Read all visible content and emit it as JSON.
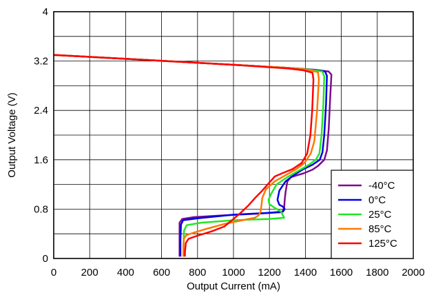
{
  "chart_data": {
    "type": "line",
    "title": "",
    "xlabel": "Output Current (mA)",
    "ylabel": "Output Voltage (V)",
    "xlim": [
      0,
      2000
    ],
    "ylim": [
      0,
      4
    ],
    "xticks": [
      "0",
      "200",
      "400",
      "600",
      "800",
      "1000",
      "1200",
      "1400",
      "1600",
      "1800",
      "2000"
    ],
    "yticks": [
      "0",
      "0.8",
      "1.6",
      "2.4",
      "3.2",
      "4"
    ],
    "grid": true,
    "legend_position": "bottom-right",
    "series": [
      {
        "name": "-40°C",
        "color": "#7B0C8C",
        "points": [
          [
            0,
            3.3
          ],
          [
            500,
            3.22
          ],
          [
            1000,
            3.14
          ],
          [
            1300,
            3.09
          ],
          [
            1450,
            3.06
          ],
          [
            1530,
            3.03
          ],
          [
            1545,
            2.98
          ],
          [
            1538,
            2.6
          ],
          [
            1530,
            2.1
          ],
          [
            1520,
            1.75
          ],
          [
            1505,
            1.6
          ],
          [
            1470,
            1.5
          ],
          [
            1440,
            1.44
          ],
          [
            1390,
            1.38
          ],
          [
            1320,
            1.32
          ],
          [
            1300,
            1.25
          ],
          [
            1290,
            1.08
          ],
          [
            1285,
            0.95
          ],
          [
            1282,
            0.82
          ],
          [
            1270,
            0.75
          ],
          [
            1150,
            0.73
          ],
          [
            950,
            0.7
          ],
          [
            780,
            0.67
          ],
          [
            715,
            0.64
          ],
          [
            700,
            0.58
          ],
          [
            700,
            0.35
          ],
          [
            700,
            0.03
          ]
        ]
      },
      {
        "name": "0°C",
        "color": "#0000E6",
        "points": [
          [
            0,
            3.3
          ],
          [
            500,
            3.22
          ],
          [
            1000,
            3.14
          ],
          [
            1300,
            3.09
          ],
          [
            1440,
            3.06
          ],
          [
            1510,
            3.03
          ],
          [
            1520,
            2.96
          ],
          [
            1515,
            2.5
          ],
          [
            1505,
            2.0
          ],
          [
            1495,
            1.72
          ],
          [
            1480,
            1.6
          ],
          [
            1440,
            1.52
          ],
          [
            1390,
            1.45
          ],
          [
            1340,
            1.36
          ],
          [
            1290,
            1.25
          ],
          [
            1255,
            1.1
          ],
          [
            1245,
            0.95
          ],
          [
            1255,
            0.87
          ],
          [
            1275,
            0.84
          ],
          [
            1285,
            0.8
          ],
          [
            1275,
            0.76
          ],
          [
            1200,
            0.74
          ],
          [
            1000,
            0.71
          ],
          [
            800,
            0.65
          ],
          [
            720,
            0.62
          ],
          [
            708,
            0.55
          ],
          [
            705,
            0.3
          ],
          [
            705,
            0.03
          ]
        ]
      },
      {
        "name": "25°C",
        "color": "#22E622",
        "points": [
          [
            0,
            3.3
          ],
          [
            500,
            3.22
          ],
          [
            1000,
            3.14
          ],
          [
            1300,
            3.09
          ],
          [
            1430,
            3.06
          ],
          [
            1495,
            3.03
          ],
          [
            1505,
            2.95
          ],
          [
            1500,
            2.5
          ],
          [
            1490,
            2.0
          ],
          [
            1478,
            1.7
          ],
          [
            1458,
            1.6
          ],
          [
            1420,
            1.52
          ],
          [
            1360,
            1.42
          ],
          [
            1300,
            1.32
          ],
          [
            1240,
            1.2
          ],
          [
            1210,
            1.05
          ],
          [
            1195,
            0.95
          ],
          [
            1200,
            0.88
          ],
          [
            1230,
            0.82
          ],
          [
            1265,
            0.76
          ],
          [
            1275,
            0.7
          ],
          [
            1282,
            0.66
          ],
          [
            1200,
            0.64
          ],
          [
            1000,
            0.62
          ],
          [
            820,
            0.58
          ],
          [
            740,
            0.54
          ],
          [
            725,
            0.45
          ],
          [
            722,
            0.2
          ],
          [
            722,
            0.03
          ]
        ]
      },
      {
        "name": "85°C",
        "color": "#FF7700",
        "points": [
          [
            0,
            3.3
          ],
          [
            500,
            3.22
          ],
          [
            1000,
            3.14
          ],
          [
            1300,
            3.09
          ],
          [
            1410,
            3.06
          ],
          [
            1470,
            3.02
          ],
          [
            1475,
            2.9
          ],
          [
            1465,
            2.4
          ],
          [
            1450,
            1.9
          ],
          [
            1430,
            1.7
          ],
          [
            1395,
            1.55
          ],
          [
            1350,
            1.45
          ],
          [
            1290,
            1.35
          ],
          [
            1230,
            1.25
          ],
          [
            1180,
            1.12
          ],
          [
            1160,
            0.98
          ],
          [
            1155,
            0.85
          ],
          [
            1150,
            0.75
          ],
          [
            1140,
            0.7
          ],
          [
            1120,
            0.66
          ],
          [
            1050,
            0.62
          ],
          [
            950,
            0.56
          ],
          [
            850,
            0.48
          ],
          [
            780,
            0.42
          ],
          [
            740,
            0.38
          ],
          [
            725,
            0.33
          ],
          [
            722,
            0.2
          ],
          [
            722,
            0.03
          ]
        ]
      },
      {
        "name": "125°C",
        "color": "#FF0000",
        "points": [
          [
            0,
            3.3
          ],
          [
            500,
            3.22
          ],
          [
            1000,
            3.14
          ],
          [
            1300,
            3.08
          ],
          [
            1390,
            3.05
          ],
          [
            1440,
            3.01
          ],
          [
            1445,
            2.9
          ],
          [
            1438,
            2.4
          ],
          [
            1428,
            2.0
          ],
          [
            1410,
            1.7
          ],
          [
            1380,
            1.55
          ],
          [
            1330,
            1.45
          ],
          [
            1270,
            1.38
          ],
          [
            1230,
            1.33
          ],
          [
            1215,
            1.28
          ],
          [
            1190,
            1.2
          ],
          [
            1160,
            1.1
          ],
          [
            1120,
            0.98
          ],
          [
            1080,
            0.85
          ],
          [
            1040,
            0.74
          ],
          [
            1000,
            0.64
          ],
          [
            950,
            0.52
          ],
          [
            880,
            0.44
          ],
          [
            800,
            0.37
          ],
          [
            750,
            0.32
          ],
          [
            735,
            0.25
          ],
          [
            730,
            0.1
          ],
          [
            730,
            0.03
          ]
        ]
      }
    ]
  }
}
